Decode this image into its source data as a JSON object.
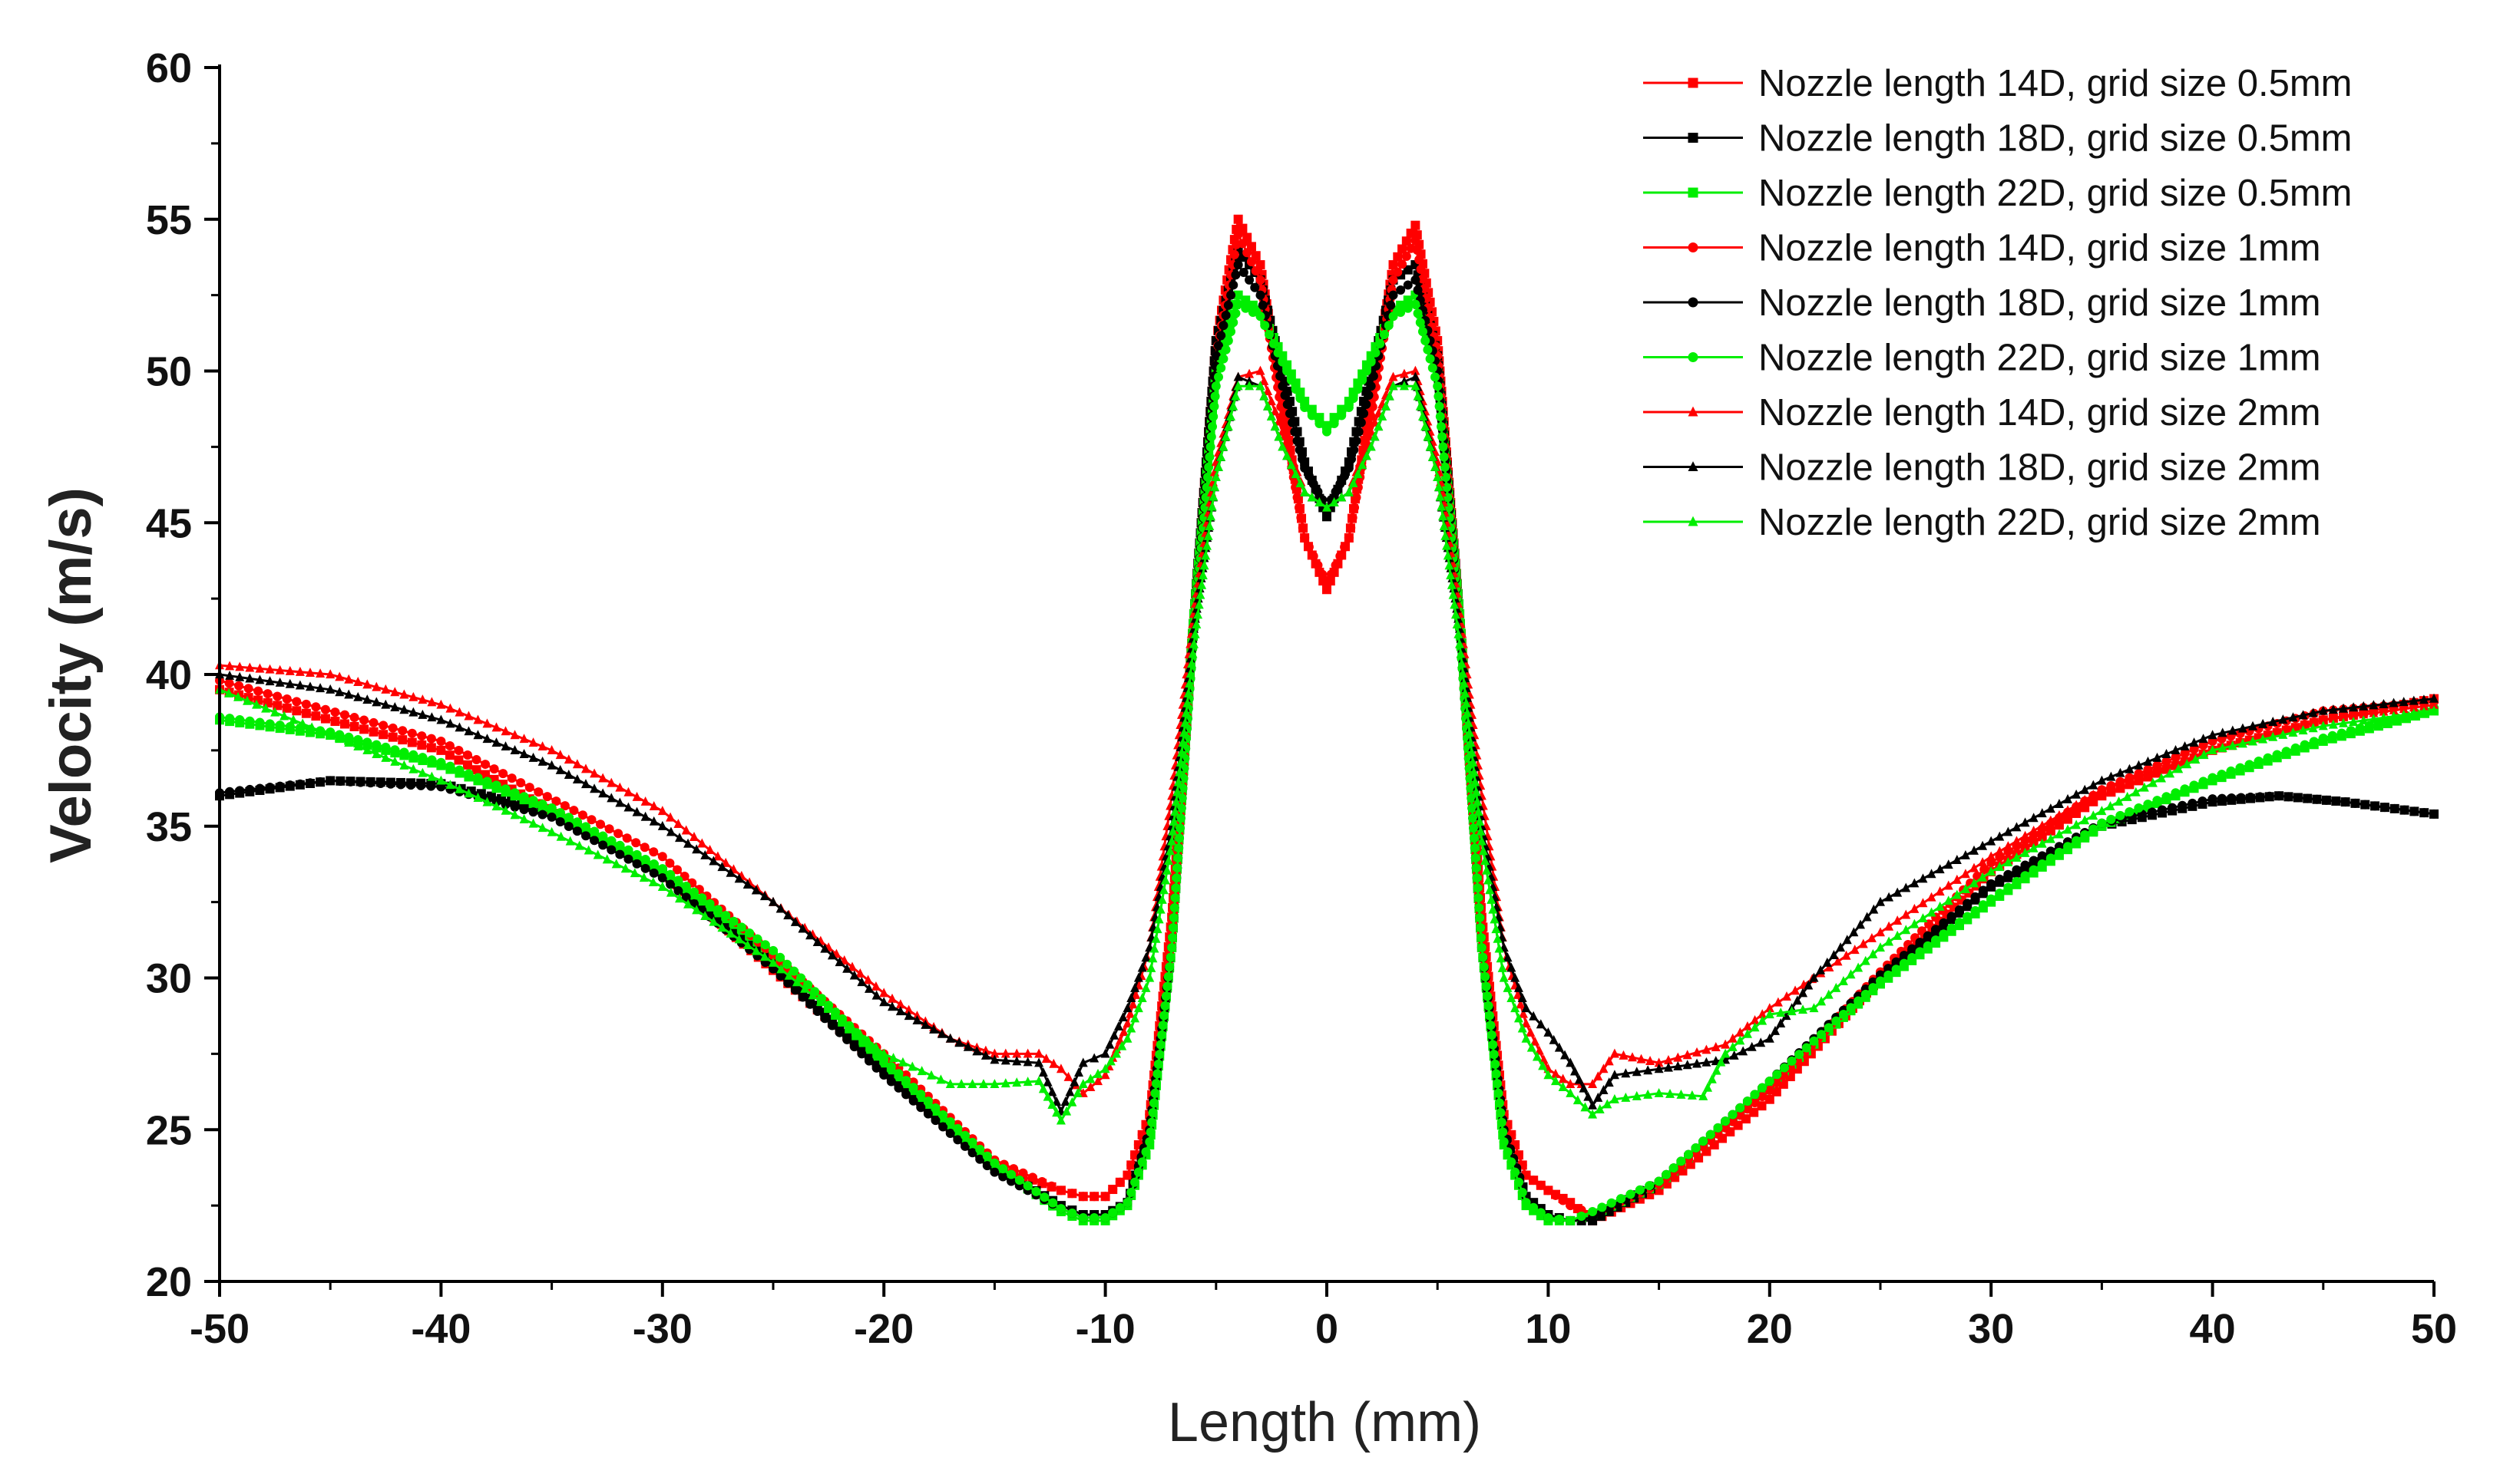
{
  "chart_data": {
    "type": "line",
    "title": "",
    "xlabel": "Length (mm)",
    "ylabel": "Velocity (m/s)",
    "xlim": [
      -50,
      50
    ],
    "ylim": [
      20,
      60
    ],
    "x_ticks": [
      -50,
      -40,
      -30,
      -20,
      -10,
      0,
      10,
      20,
      30,
      40,
      50
    ],
    "y_ticks": [
      20,
      25,
      30,
      35,
      40,
      45,
      50,
      55,
      60
    ],
    "legend_position": "top-right",
    "series": [
      {
        "name": "Nozzle length 14D, grid size 0.5mm",
        "color": "#ff0000",
        "marker": "square",
        "x": [
          -50,
          -40,
          -30,
          -20,
          -15,
          -12,
          -11,
          -10,
          -9,
          -8,
          -7,
          -6,
          -5,
          -4,
          -3,
          -2,
          -1,
          0,
          1,
          2,
          3,
          4,
          5,
          6,
          7,
          8,
          9,
          10,
          11,
          12,
          15,
          20,
          25,
          30,
          35,
          40,
          45,
          50
        ],
        "y": [
          39.5,
          37.5,
          33.5,
          27,
          23.8,
          23,
          22.8,
          22.8,
          23.5,
          25.5,
          32,
          42,
          51,
          55,
          53.5,
          49,
          44.5,
          42.8,
          44.5,
          49,
          53.5,
          54.8,
          51,
          42,
          32,
          25.5,
          23.5,
          23,
          22.6,
          22,
          23,
          26,
          30,
          33.5,
          36,
          37.5,
          38.5,
          39.2
        ]
      },
      {
        "name": "Nozzle length 18D, grid size 0.5mm",
        "color": "#000000",
        "marker": "square",
        "x": [
          -50,
          -45,
          -40,
          -35,
          -30,
          -25,
          -20,
          -15,
          -12,
          -11,
          -10,
          -9,
          -8,
          -7,
          -6,
          -5,
          -4,
          -3,
          -2,
          -1,
          0,
          1,
          2,
          3,
          4,
          5,
          6,
          7,
          8,
          9,
          10,
          11,
          12,
          15,
          20,
          25,
          30,
          35,
          40,
          43,
          46,
          50
        ],
        "y": [
          36,
          36.5,
          36.4,
          35.5,
          33.5,
          30.5,
          27,
          23.8,
          22.5,
          22.2,
          22.2,
          22.6,
          25,
          31,
          42,
          51,
          54,
          53,
          50,
          47,
          45.2,
          47,
          50,
          53,
          53.5,
          50.5,
          42,
          31,
          25,
          22.8,
          22.2,
          22,
          22,
          23.2,
          26.5,
          30,
          33,
          35,
          35.8,
          36,
          35.8,
          35.4
        ]
      },
      {
        "name": "Nozzle length 22D, grid size 0.5mm",
        "color": "#00ee00",
        "marker": "square",
        "x": [
          -50,
          -45,
          -40,
          -35,
          -30,
          -25,
          -20,
          -15,
          -12,
          -11,
          -10,
          -9,
          -8,
          -7,
          -6,
          -5,
          -4,
          -3,
          -2,
          -1,
          0,
          1,
          2,
          3,
          4,
          5,
          6,
          7,
          8,
          9,
          10,
          11,
          12,
          15,
          20,
          25,
          30,
          35,
          40,
          45,
          50
        ],
        "y": [
          38.5,
          38,
          37,
          35.5,
          33.5,
          30.8,
          27.2,
          23.8,
          22.3,
          22,
          22,
          22.5,
          24.5,
          31,
          42,
          50,
          52.5,
          52,
          50.5,
          49,
          48.2,
          49,
          50.5,
          52,
          52.5,
          50,
          42,
          31,
          24.5,
          22.5,
          22,
          22,
          22.2,
          23.2,
          26.5,
          29.8,
          32.5,
          35,
          36.5,
          37.8,
          38.8
        ]
      },
      {
        "name": "Nozzle length 14D, grid size 1mm",
        "color": "#ff0000",
        "marker": "circle",
        "x": [
          -50,
          -40,
          -30,
          -20,
          -15,
          -12,
          -11,
          -10,
          -9,
          -8,
          -7,
          -6,
          -5,
          -4,
          -3,
          -2,
          -1,
          0,
          1,
          2,
          3,
          4,
          5,
          6,
          7,
          8,
          9,
          10,
          11,
          12,
          15,
          20,
          25,
          30,
          35,
          40,
          45,
          50
        ],
        "y": [
          39.8,
          37.8,
          34,
          27.5,
          24,
          23,
          22.8,
          22.8,
          23.5,
          25.5,
          31.5,
          41.5,
          50.5,
          54.5,
          53,
          48.5,
          44.5,
          43,
          44.5,
          48.5,
          53,
          54.3,
          50.5,
          41.5,
          31.5,
          25.5,
          23.5,
          23,
          22.5,
          22.2,
          23.2,
          26.3,
          30.2,
          33.8,
          36.2,
          37.8,
          38.8,
          39.1
        ]
      },
      {
        "name": "Nozzle length 18D, grid size 1mm",
        "color": "#000000",
        "marker": "circle",
        "x": [
          -50,
          -45,
          -40,
          -35,
          -30,
          -25,
          -20,
          -15,
          -12,
          -11,
          -10,
          -9,
          -8,
          -7,
          -6,
          -5,
          -4,
          -3,
          -2,
          -1,
          0,
          1,
          2,
          3,
          4,
          5,
          6,
          7,
          8,
          9,
          10,
          11,
          12,
          15,
          20,
          25,
          30,
          35,
          40,
          43,
          46,
          50
        ],
        "y": [
          36.1,
          36.5,
          36.3,
          35.3,
          33.3,
          30.3,
          26.8,
          23.6,
          22.4,
          22.1,
          22.1,
          22.6,
          25,
          31,
          41.5,
          50.5,
          53.5,
          52.5,
          49.5,
          46.8,
          45.5,
          46.8,
          49.5,
          52.5,
          53,
          50,
          41.5,
          31,
          25,
          22.8,
          22.1,
          22,
          22.1,
          23.3,
          26.6,
          30.1,
          33.1,
          35.1,
          35.9,
          36,
          35.8,
          35.4
        ]
      },
      {
        "name": "Nozzle length 22D, grid size 1mm",
        "color": "#00ee00",
        "marker": "circle",
        "x": [
          -50,
          -45,
          -40,
          -35,
          -30,
          -25,
          -20,
          -15,
          -12,
          -11,
          -10,
          -9,
          -8,
          -7,
          -6,
          -5,
          -4,
          -3,
          -2,
          -1,
          0,
          1,
          2,
          3,
          4,
          5,
          6,
          7,
          8,
          9,
          10,
          11,
          12,
          15,
          20,
          25,
          30,
          35,
          40,
          45,
          50
        ],
        "y": [
          38.6,
          38.1,
          37.1,
          35.6,
          33.6,
          30.9,
          27.3,
          23.9,
          22.4,
          22.1,
          22.1,
          22.6,
          24.6,
          31,
          41.5,
          49.5,
          52.2,
          51.8,
          50.3,
          48.8,
          48,
          48.8,
          50.3,
          51.8,
          52.2,
          49.5,
          41.5,
          31,
          24.6,
          22.6,
          22.1,
          22,
          22.3,
          23.3,
          26.6,
          29.9,
          32.6,
          35.1,
          36.6,
          37.9,
          38.9
        ]
      },
      {
        "name": "Nozzle length 14D, grid size 2mm",
        "color": "#ff0000",
        "marker": "triangle",
        "x": [
          -50,
          -45,
          -40,
          -35,
          -30,
          -25,
          -20,
          -17,
          -15,
          -13,
          -12,
          -11,
          -10,
          -9,
          -8,
          -7,
          -6,
          -5,
          -4,
          -3,
          -2,
          -1,
          0,
          1,
          2,
          3,
          4,
          5,
          6,
          7,
          8,
          9,
          10,
          11,
          12,
          13,
          15,
          18,
          20,
          25,
          30,
          35,
          40,
          45,
          50
        ],
        "y": [
          40.3,
          40,
          39,
          37.5,
          35.5,
          32.5,
          29.5,
          28,
          27.5,
          27.5,
          27,
          26.2,
          26.8,
          28.5,
          31,
          36,
          42,
          47,
          49.8,
          50,
          48,
          46,
          45.5,
          46,
          48,
          49.8,
          50,
          47,
          42,
          36,
          31,
          28.5,
          27,
          26.5,
          26.5,
          27.5,
          27.2,
          27.8,
          29,
          31.5,
          34,
          36.2,
          37.5,
          38.5,
          39
        ]
      },
      {
        "name": "Nozzle length 18D, grid size 2mm",
        "color": "#000000",
        "marker": "triangle",
        "x": [
          -50,
          -45,
          -40,
          -35,
          -30,
          -25,
          -20,
          -17,
          -15,
          -13,
          -12,
          -11,
          -10,
          -9,
          -8,
          -7,
          -6,
          -5,
          -4,
          -3,
          -2,
          -1,
          0,
          1,
          2,
          3,
          4,
          5,
          6,
          7,
          8,
          9,
          10,
          11,
          12,
          13,
          15,
          18,
          20,
          22,
          25,
          30,
          35,
          40,
          45,
          50
        ],
        "y": [
          40,
          39.5,
          38.5,
          37,
          35,
          32.5,
          29.2,
          28,
          27.3,
          27.2,
          25.6,
          27.2,
          27.5,
          29,
          31,
          35,
          41.5,
          46.5,
          49.8,
          49.5,
          47.5,
          46,
          45.5,
          46,
          47.5,
          49.5,
          49.8,
          46.5,
          41.5,
          35,
          31,
          29,
          28.2,
          27.2,
          25.8,
          26.8,
          27,
          27.3,
          28,
          30,
          32.5,
          34.5,
          36.5,
          38,
          38.8,
          39.2
        ]
      },
      {
        "name": "Nozzle length 22D, grid size 2mm",
        "color": "#00ee00",
        "marker": "triangle",
        "x": [
          -50,
          -45,
          -40,
          -35,
          -30,
          -25,
          -20,
          -17,
          -15,
          -13,
          -12,
          -11,
          -10,
          -9,
          -8,
          -7,
          -6,
          -5,
          -4,
          -3,
          -2,
          -1,
          0,
          1,
          2,
          3,
          4,
          5,
          6,
          7,
          8,
          9,
          10,
          11,
          12,
          13,
          15,
          17,
          18,
          20,
          22,
          25,
          30,
          35,
          40,
          45,
          50
        ],
        "y": [
          39.5,
          38,
          36.5,
          34.8,
          33,
          30.5,
          27.5,
          26.5,
          26.5,
          26.6,
          25.3,
          26.5,
          27,
          28,
          30,
          34.5,
          41,
          46.5,
          49.5,
          49.5,
          47.5,
          46,
          45.5,
          46,
          47.5,
          49.5,
          49.5,
          46.5,
          41,
          34.5,
          30,
          28,
          26.8,
          26.2,
          25.5,
          26,
          26.2,
          26.1,
          27.5,
          28.8,
          29,
          31,
          33.5,
          35.5,
          37.5,
          38.3,
          38.8
        ]
      }
    ]
  }
}
